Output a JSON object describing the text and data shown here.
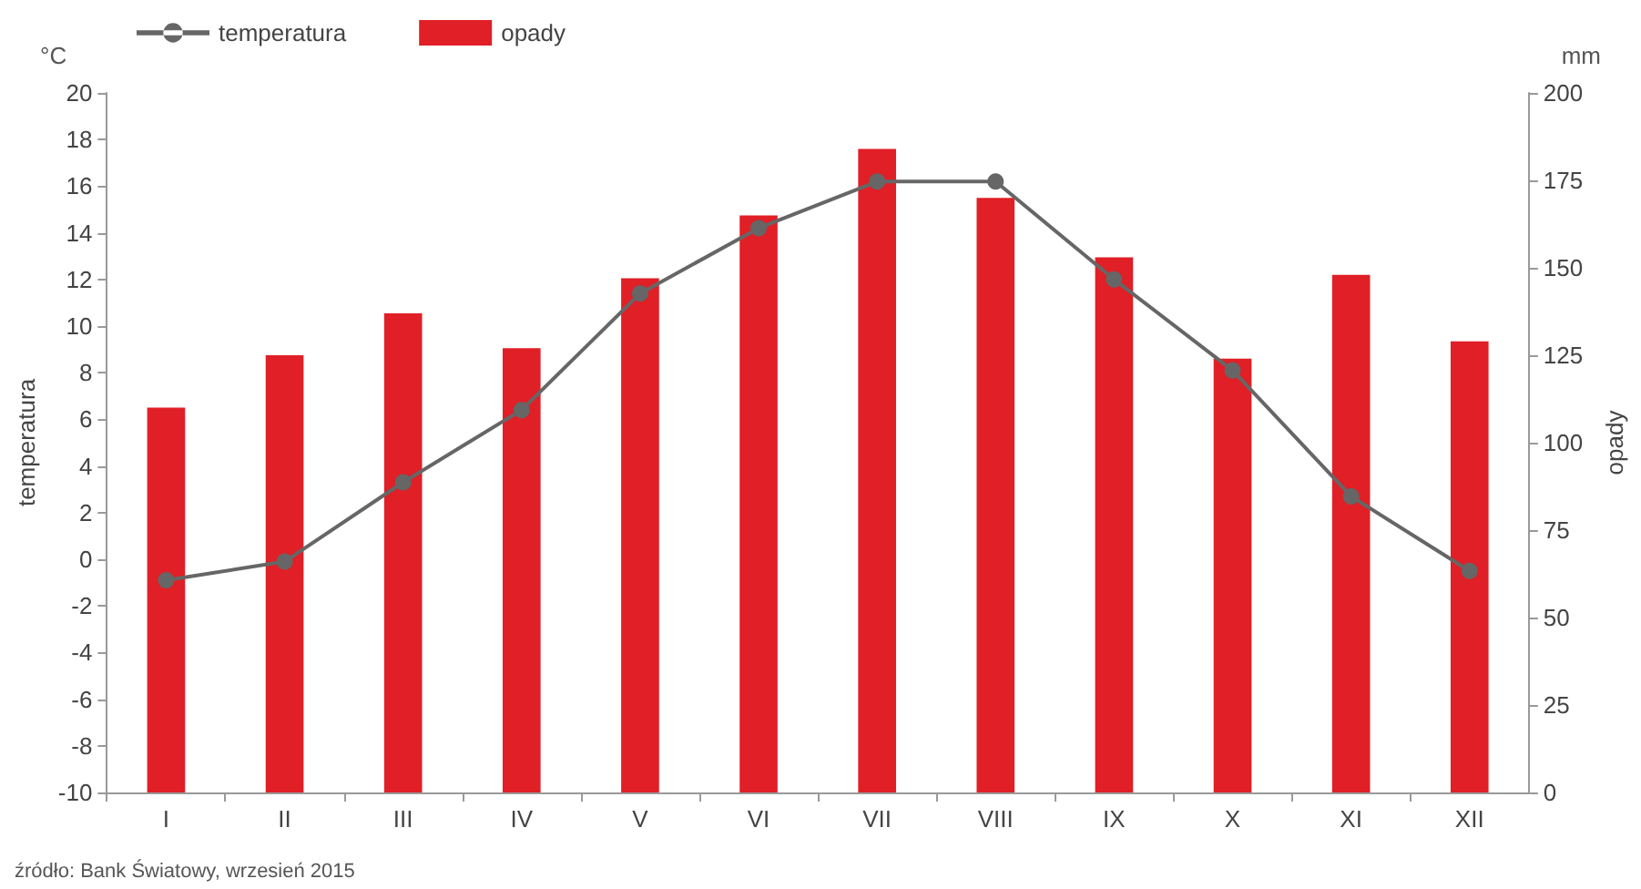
{
  "chart_data": {
    "type": "bar",
    "ylabel": "temperatura",
    "y2label": "opady",
    "annotations": [
      "°C",
      "mm",
      "źródło: Bank Światowy, wrzesień 2015"
    ],
    "categories": [
      "I",
      "II",
      "III",
      "IV",
      "V",
      "VI",
      "VII",
      "VIII",
      "IX",
      "X",
      "XI",
      "XII"
    ],
    "series": [
      {
        "name": "temperatura",
        "type": "line",
        "color": "#666666",
        "marker": "circle",
        "line_style": "solid",
        "values": [
          -0.9,
          -0.1,
          3.3,
          6.4,
          11.4,
          14.2,
          16.2,
          16.2,
          12.0,
          8.1,
          2.7,
          -0.5
        ]
      },
      {
        "name": "opady",
        "type": "bar",
        "axis": "y2",
        "color": "#e01f26",
        "values": [
          110,
          125,
          137,
          127,
          147,
          165,
          184,
          170,
          153,
          124,
          148,
          129
        ]
      }
    ],
    "ylim": [
      -10,
      20
    ],
    "yticks": [
      -10,
      -8,
      -6,
      -4,
      -2,
      0,
      2,
      4,
      6,
      8,
      10,
      12,
      14,
      16,
      18,
      20
    ],
    "y2lim": [
      0,
      200
    ],
    "y2ticks": [
      0,
      25,
      50,
      75,
      100,
      125,
      150,
      175,
      200
    ],
    "grid": false,
    "legend": "top left"
  }
}
